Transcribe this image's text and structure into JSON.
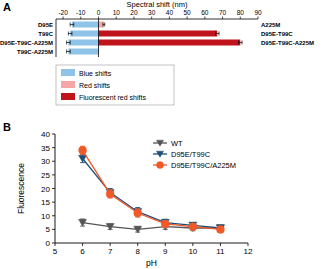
{
  "chart_data": [
    {
      "type": "bar",
      "label": "A",
      "orientation": "horizontal",
      "x_label": "Spectral shift (nm)",
      "categories": [
        "D95E",
        "T99C",
        "D95E-T99C-A225M",
        "T99C-A225M"
      ],
      "right_categories": [
        "A225M",
        "D95E-T99C",
        "D95E-T99C-A225M",
        null
      ],
      "series": [
        {
          "name": "Blue shifts",
          "color": "#8fc4e8",
          "values": [
            -15,
            -16,
            -17,
            -17
          ],
          "errors": [
            1,
            1,
            1,
            1
          ]
        },
        {
          "name": "Red shifts",
          "color": "#f4a7a6",
          "values": [
            3,
            null,
            null,
            null
          ],
          "errors": [
            0.5,
            null,
            null,
            null
          ]
        },
        {
          "name": "Fluorescent red shifts",
          "color": "#c0141c",
          "values": [
            null,
            67,
            80,
            null
          ],
          "errors": [
            null,
            1,
            1,
            null
          ]
        }
      ],
      "xlim": [
        -24,
        90
      ],
      "xticks": [
        -20,
        -10,
        0,
        10,
        20,
        30,
        40,
        50,
        60,
        70,
        80,
        90
      ],
      "legend": "lower left"
    },
    {
      "type": "line",
      "label": "B",
      "x_label": "pH",
      "y_label": "Fluorescence",
      "x": [
        6,
        7,
        8,
        9,
        10,
        11
      ],
      "series": [
        {
          "name": "WT",
          "color": "#555555",
          "marker": "triangle-down",
          "values": [
            7.5,
            6,
            5,
            6,
            5.5,
            5.5
          ],
          "errors": [
            1.3,
            1,
            1,
            1,
            1,
            1
          ]
        },
        {
          "name": "D95E/T99C",
          "color": "#1f4e79",
          "marker": "triangle-down",
          "values": [
            31,
            18.5,
            11.5,
            7.5,
            6.5,
            5.5
          ],
          "errors": [
            1.5,
            1.5,
            1.5,
            1.2,
            1,
            1
          ]
        },
        {
          "name": "D95E/T99C/A225M",
          "color": "#f05a28",
          "marker": "circle",
          "values": [
            34,
            18,
            11,
            7,
            6,
            5
          ],
          "errors": [
            1.5,
            1.5,
            1.5,
            1.2,
            1,
            1
          ]
        }
      ],
      "xlim": [
        5,
        12
      ],
      "xticks": [
        5,
        6,
        7,
        8,
        9,
        10,
        11,
        12
      ],
      "ylim": [
        0,
        40
      ],
      "yticks": [
        0,
        5,
        10,
        15,
        20,
        25,
        30,
        35,
        40
      ],
      "legend": "upper right"
    }
  ]
}
